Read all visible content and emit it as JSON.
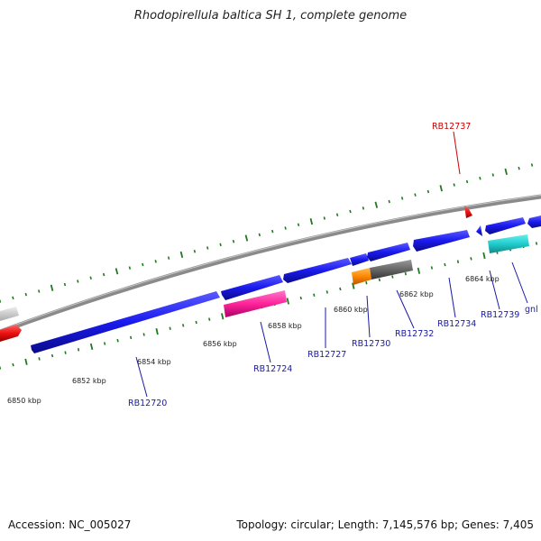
{
  "title": "Rhodopirellula baltica SH 1, complete genome",
  "footer": {
    "accession": "Accession: NC_005027",
    "summary": "Topology: circular; Length: 7,145,576 bp; Genes: 7,405"
  },
  "scale": {
    "unit": "kbp",
    "ticks": [
      "6850 kbp",
      "6852 kbp",
      "6854 kbp",
      "6856 kbp",
      "6858 kbp",
      "6860 kbp",
      "6862 kbp",
      "6864 kbp"
    ]
  },
  "genes": [
    {
      "name": "RB12720",
      "color": "#1a1aa6"
    },
    {
      "name": "RB12724",
      "color": "#1a1aa6"
    },
    {
      "name": "RB12727",
      "color": "#1a1aa6"
    },
    {
      "name": "RB12730",
      "color": "#1a1aa6"
    },
    {
      "name": "RB12732",
      "color": "#1a1aa6"
    },
    {
      "name": "RB12734",
      "color": "#1a1aa6"
    },
    {
      "name": "RB12737",
      "color": "#cc0000"
    },
    {
      "name": "RB12739",
      "color": "#1a1aa6"
    },
    {
      "name": "gnl",
      "color": "#1a1aa6"
    }
  ],
  "colors": {
    "cds": "#1a1aee",
    "cds_dark": "#0a0a99",
    "rna_pink": "#ff33aa",
    "orange": "#ff8800",
    "grey_feature": "#666666",
    "cyan": "#22cccc",
    "red": "#ee1111",
    "backbone": "#888888",
    "tick": "#1f7a1f"
  }
}
